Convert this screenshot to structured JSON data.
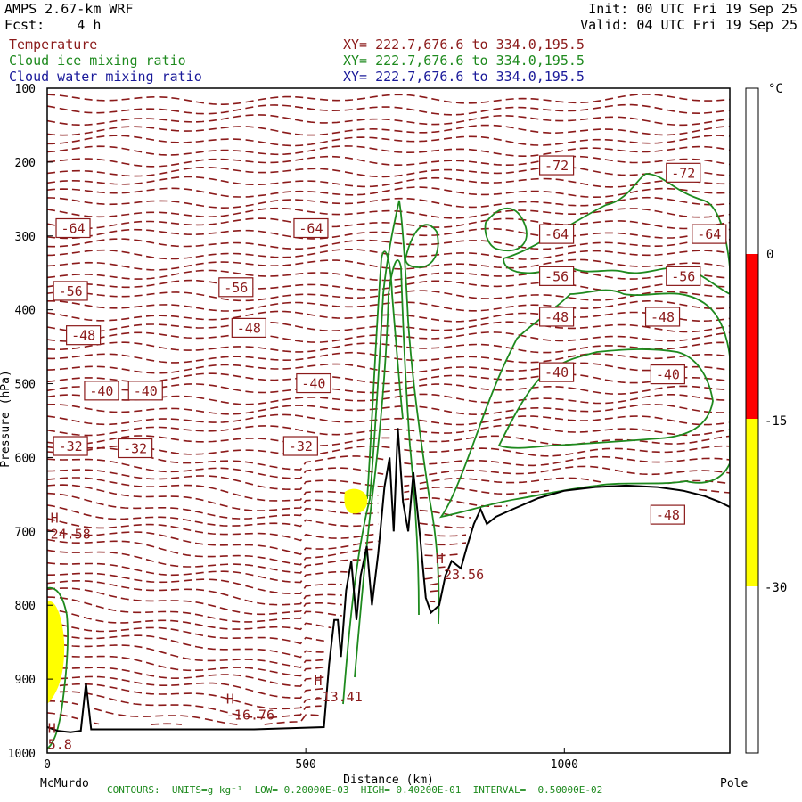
{
  "header": {
    "model": "AMPS 2.67-km WRF",
    "forecast": "Fcst:    4 h",
    "init": "Init: 00 UTC Fri 19 Sep 25",
    "valid": "Valid: 04 UTC Fri 19 Sep 25"
  },
  "fields": [
    {
      "name": "Temperature",
      "xy": "XY= 222.7,676.6 to 334.0,195.5",
      "color": "#8b1a1a"
    },
    {
      "name": "Cloud ice mixing ratio",
      "xy": "XY= 222.7,676.6 to 334.0,195.5",
      "color": "#1e8a1e"
    },
    {
      "name": "Cloud water mixing ratio",
      "xy": "XY= 222.7,676.6 to 334.0,195.5",
      "color": "#1a1a9a"
    }
  ],
  "footer": "CONTOURS:  UNITS=g kg⁻¹  LOW= 0.20000E-03  HIGH= 0.40200E-01  INTERVAL=  0.50000E-02",
  "chart_data": {
    "type": "cross-section",
    "xlabel": "Distance (km)",
    "ylabel": "Pressure (hPa)",
    "xlim": [
      0,
      1320
    ],
    "ylim": [
      1000,
      100
    ],
    "x_ticks": [
      0,
      500,
      1000
    ],
    "y_ticks": [
      100,
      200,
      300,
      400,
      500,
      600,
      700,
      800,
      900,
      1000
    ],
    "x_endpoints": {
      "left": "McMurdo",
      "right": "Pole"
    },
    "colorbar": {
      "unit": "°C",
      "labels": [
        "0",
        "-15",
        "-30"
      ],
      "bands": [
        {
          "from": 0,
          "to": -15,
          "color": "#ff0000"
        },
        {
          "from": -15,
          "to": -30,
          "color": "#ffff00"
        }
      ]
    },
    "terrain": [
      [
        0,
        965
      ],
      [
        20,
        970
      ],
      [
        45,
        972
      ],
      [
        65,
        970
      ],
      [
        75,
        905
      ],
      [
        85,
        968
      ],
      [
        200,
        968
      ],
      [
        400,
        968
      ],
      [
        535,
        965
      ],
      [
        545,
        880
      ],
      [
        555,
        820
      ],
      [
        562,
        820
      ],
      [
        568,
        870
      ],
      [
        578,
        780
      ],
      [
        588,
        740
      ],
      [
        598,
        820
      ],
      [
        606,
        760
      ],
      [
        618,
        720
      ],
      [
        628,
        800
      ],
      [
        640,
        730
      ],
      [
        652,
        640
      ],
      [
        662,
        600
      ],
      [
        670,
        700
      ],
      [
        678,
        560
      ],
      [
        688,
        660
      ],
      [
        698,
        700
      ],
      [
        708,
        620
      ],
      [
        720,
        700
      ],
      [
        732,
        790
      ],
      [
        742,
        810
      ],
      [
        758,
        800
      ],
      [
        770,
        760
      ],
      [
        782,
        740
      ],
      [
        800,
        750
      ],
      [
        812,
        720
      ],
      [
        825,
        690
      ],
      [
        838,
        670
      ],
      [
        850,
        690
      ],
      [
        868,
        680
      ],
      [
        900,
        670
      ],
      [
        950,
        655
      ],
      [
        1000,
        645
      ],
      [
        1060,
        640
      ],
      [
        1120,
        638
      ],
      [
        1180,
        640
      ],
      [
        1230,
        645
      ],
      [
        1270,
        652
      ],
      [
        1300,
        660
      ],
      [
        1320,
        667
      ]
    ],
    "temperature_labels": [
      {
        "x": 50,
        "p": 290,
        "label": "-64"
      },
      {
        "x": 510,
        "p": 290,
        "label": "-64"
      },
      {
        "x": 985,
        "p": 298,
        "label": "-64"
      },
      {
        "x": 1280,
        "p": 298,
        "label": "-64"
      },
      {
        "x": 985,
        "p": 205,
        "label": "-72"
      },
      {
        "x": 1230,
        "p": 215,
        "label": "-72"
      },
      {
        "x": 45,
        "p": 375,
        "label": "-56"
      },
      {
        "x": 365,
        "p": 370,
        "label": "-56"
      },
      {
        "x": 985,
        "p": 355,
        "label": "-56"
      },
      {
        "x": 1230,
        "p": 355,
        "label": "-56"
      },
      {
        "x": 70,
        "p": 435,
        "label": "-48"
      },
      {
        "x": 390,
        "p": 425,
        "label": "-48"
      },
      {
        "x": 985,
        "p": 410,
        "label": "-48"
      },
      {
        "x": 1190,
        "p": 410,
        "label": "-48"
      },
      {
        "x": 1200,
        "p": 678,
        "label": "-48"
      },
      {
        "x": 105,
        "p": 510,
        "label": "-40"
      },
      {
        "x": 190,
        "p": 510,
        "label": "-40"
      },
      {
        "x": 515,
        "p": 500,
        "label": "-40"
      },
      {
        "x": 985,
        "p": 485,
        "label": "-40"
      },
      {
        "x": 1200,
        "p": 488,
        "label": "-40"
      },
      {
        "x": 45,
        "p": 585,
        "label": "-32"
      },
      {
        "x": 170,
        "p": 588,
        "label": "-32"
      },
      {
        "x": 490,
        "p": 585,
        "label": "-32"
      }
    ],
    "highs": [
      {
        "x": 20,
        "p": 705,
        "label": "24.58"
      },
      {
        "x": 765,
        "p": 760,
        "label": "-23.56"
      },
      {
        "x": 360,
        "p": 950,
        "label": "-16.76"
      },
      {
        "x": 530,
        "p": 925,
        "label": "-13.41"
      },
      {
        "x": 15,
        "p": 990,
        "label": "5.8"
      }
    ]
  }
}
